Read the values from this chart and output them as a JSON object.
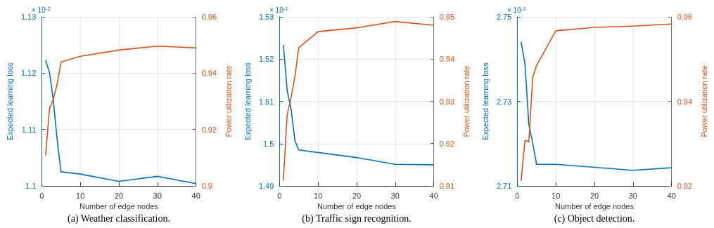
{
  "chart_data": [
    {
      "type": "line",
      "title": "(a) Weather classification.",
      "xlabel": "Number of edge nodes",
      "ylabel": "Expected learning loss",
      "y2label": "Power utilization rate",
      "annotations": [
        "× 10$^{-2}$"
      ],
      "x": [
        1,
        2,
        3,
        4,
        5,
        10,
        20,
        30,
        40
      ],
      "series": [
        {
          "color": "#0072bd",
          "values": [
            1.1223,
            1.1202,
            1.1152,
            1.1082,
            1.1025,
            1.1021,
            1.1008,
            1.1017,
            1.1004
          ]
        },
        {
          "color": "#d95319",
          "axis": "y2",
          "values": [
            0.9108,
            0.9273,
            0.9308,
            0.9361,
            0.944,
            0.946,
            0.9482,
            0.9496,
            0.949
          ]
        }
      ],
      "xlim": [
        0,
        40
      ],
      "xticks": [
        0,
        10,
        20,
        30,
        40
      ],
      "ylim": [
        1.1,
        1.13
      ],
      "yticks": [
        1.1,
        1.11,
        1.12,
        1.13
      ],
      "y2lim": [
        0.9,
        0.96
      ],
      "y2ticks": [
        0.9,
        0.92,
        0.94,
        0.96
      ],
      "grid": true,
      "marker": "none",
      "line_style": "solid"
    },
    {
      "type": "line",
      "title": "(b) Traffic sign recognition.",
      "xlabel": "Number of edge nodes",
      "ylabel": "Expected learning loss",
      "y2label": "Power utilization rate",
      "annotations": [
        "× 10$^{-1}$"
      ],
      "x": [
        1,
        2,
        3,
        4,
        5,
        10,
        20,
        30,
        40
      ],
      "series": [
        {
          "color": "#0072bd",
          "values": [
            1.5234,
            1.5125,
            1.5082,
            1.5007,
            1.4985,
            1.4979,
            1.4967,
            1.4951,
            1.495
          ]
        },
        {
          "color": "#d95319",
          "axis": "y2",
          "values": [
            0.9113,
            0.9269,
            0.9309,
            0.9359,
            0.9427,
            0.9465,
            0.9474,
            0.9489,
            0.948
          ]
        }
      ],
      "xlim": [
        0,
        40
      ],
      "xticks": [
        0,
        10,
        20,
        30,
        40
      ],
      "ylim": [
        1.49,
        1.53
      ],
      "yticks": [
        1.49,
        1.5,
        1.51,
        1.52,
        1.53
      ],
      "y2lim": [
        0.91,
        0.95
      ],
      "y2ticks": [
        0.91,
        0.92,
        0.93,
        0.94,
        0.95
      ],
      "grid": true,
      "marker": "none",
      "line_style": "solid"
    },
    {
      "type": "line",
      "title": "(c) Object detection.",
      "xlabel": "Number of edge nodes",
      "ylabel": "Expected learning loss",
      "y2label": "Power utilization rate",
      "annotations": [
        "× 10$^{-1}$"
      ],
      "x": [
        1,
        2,
        3,
        4,
        5,
        10,
        20,
        30,
        40
      ],
      "series": [
        {
          "color": "#0072bd",
          "values": [
            2.7441,
            2.7389,
            2.7245,
            2.7202,
            2.7151,
            2.7151,
            2.7144,
            2.7137,
            2.7143
          ]
        },
        {
          "color": "#d95319",
          "axis": "y2",
          "values": [
            0.9212,
            0.9308,
            0.9304,
            0.9457,
            0.9485,
            0.9567,
            0.9575,
            0.9578,
            0.9583
          ]
        }
      ],
      "xlim": [
        0,
        40
      ],
      "xticks": [
        0,
        10,
        20,
        30,
        40
      ],
      "ylim": [
        2.71,
        2.75
      ],
      "yticks": [
        2.71,
        2.73,
        2.75
      ],
      "y2lim": [
        0.92,
        0.96
      ],
      "y2ticks": [
        0.92,
        0.94,
        0.96
      ],
      "grid": true,
      "marker": "none",
      "line_style": "solid"
    }
  ]
}
